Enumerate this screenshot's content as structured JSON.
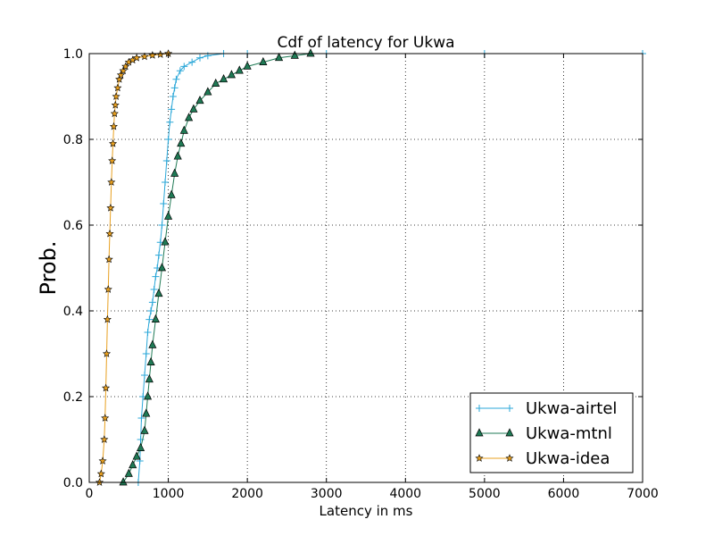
{
  "chart_data": {
    "type": "line",
    "title": "Cdf of latency for Ukwa",
    "xlabel": "Latency in ms",
    "ylabel": "Prob.",
    "xlim": [
      0,
      7000
    ],
    "ylim": [
      0.0,
      1.0
    ],
    "xticks": [
      0,
      1000,
      2000,
      3000,
      4000,
      5000,
      6000,
      7000
    ],
    "xtick_labels": [
      "0",
      "1000",
      "2000",
      "3000",
      "4000",
      "5000",
      "6000",
      "7000"
    ],
    "yticks": [
      0.0,
      0.2,
      0.4,
      0.6,
      0.8,
      1.0
    ],
    "ytick_labels": [
      "0.0",
      "0.2",
      "0.4",
      "0.6",
      "0.8",
      "1.0"
    ],
    "grid": true,
    "legend_position": "bottom-right",
    "series": [
      {
        "name": "Ukwa-airtel",
        "color": "#2aa7d8",
        "marker": "plus",
        "x": [
          620,
          640,
          650,
          660,
          680,
          700,
          720,
          740,
          760,
          780,
          800,
          820,
          840,
          860,
          880,
          900,
          920,
          940,
          960,
          980,
          1000,
          1020,
          1040,
          1060,
          1080,
          1100,
          1150,
          1200,
          1300,
          1400,
          1500,
          1700,
          2000,
          3000,
          5000,
          7000
        ],
        "y": [
          0.0,
          0.05,
          0.1,
          0.15,
          0.2,
          0.25,
          0.3,
          0.35,
          0.38,
          0.4,
          0.42,
          0.45,
          0.48,
          0.5,
          0.53,
          0.56,
          0.6,
          0.65,
          0.7,
          0.75,
          0.8,
          0.84,
          0.87,
          0.9,
          0.92,
          0.94,
          0.96,
          0.97,
          0.98,
          0.99,
          0.995,
          1.0,
          1.0,
          1.0,
          1.0,
          1.0
        ]
      },
      {
        "name": "Ukwa-mtnl",
        "color": "#1f7a55",
        "marker": "triangle",
        "x": [
          430,
          500,
          550,
          600,
          650,
          700,
          720,
          740,
          760,
          780,
          800,
          840,
          880,
          920,
          960,
          1000,
          1040,
          1080,
          1120,
          1160,
          1200,
          1260,
          1320,
          1400,
          1500,
          1600,
          1700,
          1800,
          1900,
          2000,
          2200,
          2400,
          2600,
          2800
        ],
        "y": [
          0.0,
          0.02,
          0.04,
          0.06,
          0.08,
          0.12,
          0.16,
          0.2,
          0.24,
          0.28,
          0.32,
          0.38,
          0.44,
          0.5,
          0.56,
          0.62,
          0.67,
          0.72,
          0.76,
          0.79,
          0.82,
          0.85,
          0.87,
          0.89,
          0.91,
          0.93,
          0.94,
          0.95,
          0.96,
          0.97,
          0.98,
          0.99,
          0.995,
          1.0
        ]
      },
      {
        "name": "Ukwa-idea",
        "color": "#e8a020",
        "marker": "star",
        "x": [
          130,
          150,
          170,
          190,
          200,
          210,
          220,
          230,
          240,
          250,
          260,
          270,
          280,
          290,
          300,
          310,
          320,
          330,
          340,
          360,
          380,
          400,
          430,
          460,
          500,
          550,
          600,
          700,
          800,
          900,
          1000
        ],
        "y": [
          0.0,
          0.02,
          0.05,
          0.1,
          0.15,
          0.22,
          0.3,
          0.38,
          0.45,
          0.52,
          0.58,
          0.64,
          0.7,
          0.75,
          0.79,
          0.83,
          0.86,
          0.88,
          0.9,
          0.92,
          0.94,
          0.95,
          0.96,
          0.97,
          0.98,
          0.985,
          0.99,
          0.993,
          0.996,
          0.998,
          1.0
        ]
      }
    ]
  }
}
